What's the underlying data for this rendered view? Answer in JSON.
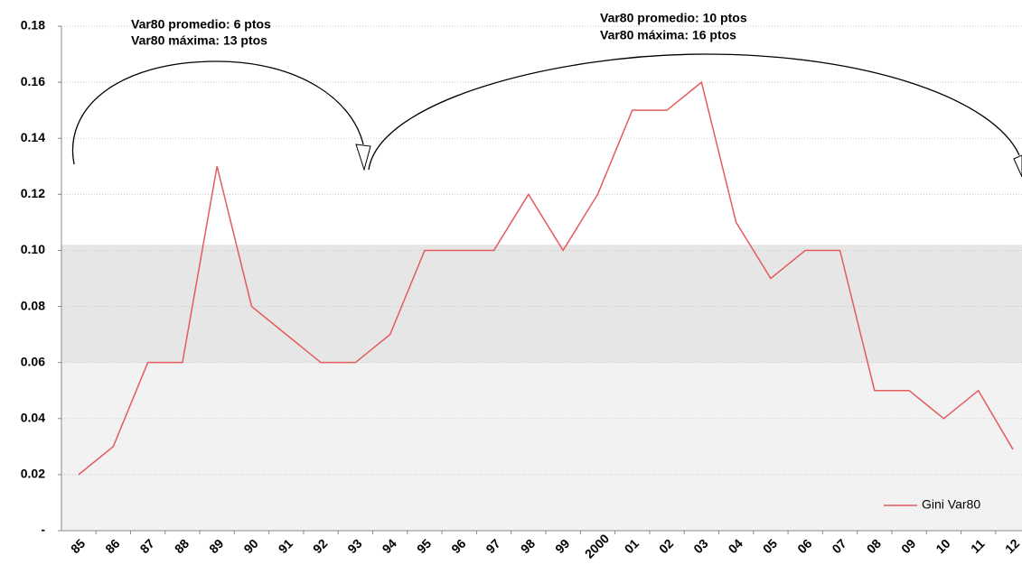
{
  "chart_data": {
    "type": "line",
    "categories": [
      "85",
      "86",
      "87",
      "88",
      "89",
      "90",
      "91",
      "92",
      "93",
      "94",
      "95",
      "96",
      "97",
      "98",
      "99",
      "2000",
      "01",
      "02",
      "03",
      "04",
      "05",
      "06",
      "07",
      "08",
      "09",
      "10",
      "11",
      "12"
    ],
    "series": [
      {
        "name": "Gini Var80",
        "color": "#e35b5b",
        "values": [
          0.02,
          0.03,
          0.06,
          0.06,
          0.13,
          0.08,
          0.07,
          0.06,
          0.06,
          0.07,
          0.1,
          0.1,
          0.1,
          0.12,
          0.1,
          0.12,
          0.15,
          0.15,
          0.16,
          0.11,
          0.09,
          0.1,
          0.1,
          0.05,
          0.05,
          0.04,
          0.05,
          0.029
        ]
      }
    ],
    "ylim": [
      0,
      0.18
    ],
    "yticks": [
      {
        "value": 0,
        "label": "-"
      },
      0.02,
      0.04,
      0.06,
      0.08,
      {
        "value": 0.1,
        "label": "0.10"
      },
      0.12,
      0.14,
      0.16,
      0.18
    ],
    "bands": [
      {
        "from": 0,
        "to": 0.102,
        "color": "#f2f2f2"
      },
      {
        "from": 0.06,
        "to": 0.102,
        "color": "#e6e6e6"
      }
    ],
    "grid": true,
    "legend": "bottom-right",
    "annotations": [
      [
        "Var80 promedio: 6 ptos",
        "Var80 máxima: 13 ptos"
      ],
      [
        "Var80 promedio: 10 ptos",
        "Var80 máxima: 16 ptos"
      ]
    ]
  }
}
